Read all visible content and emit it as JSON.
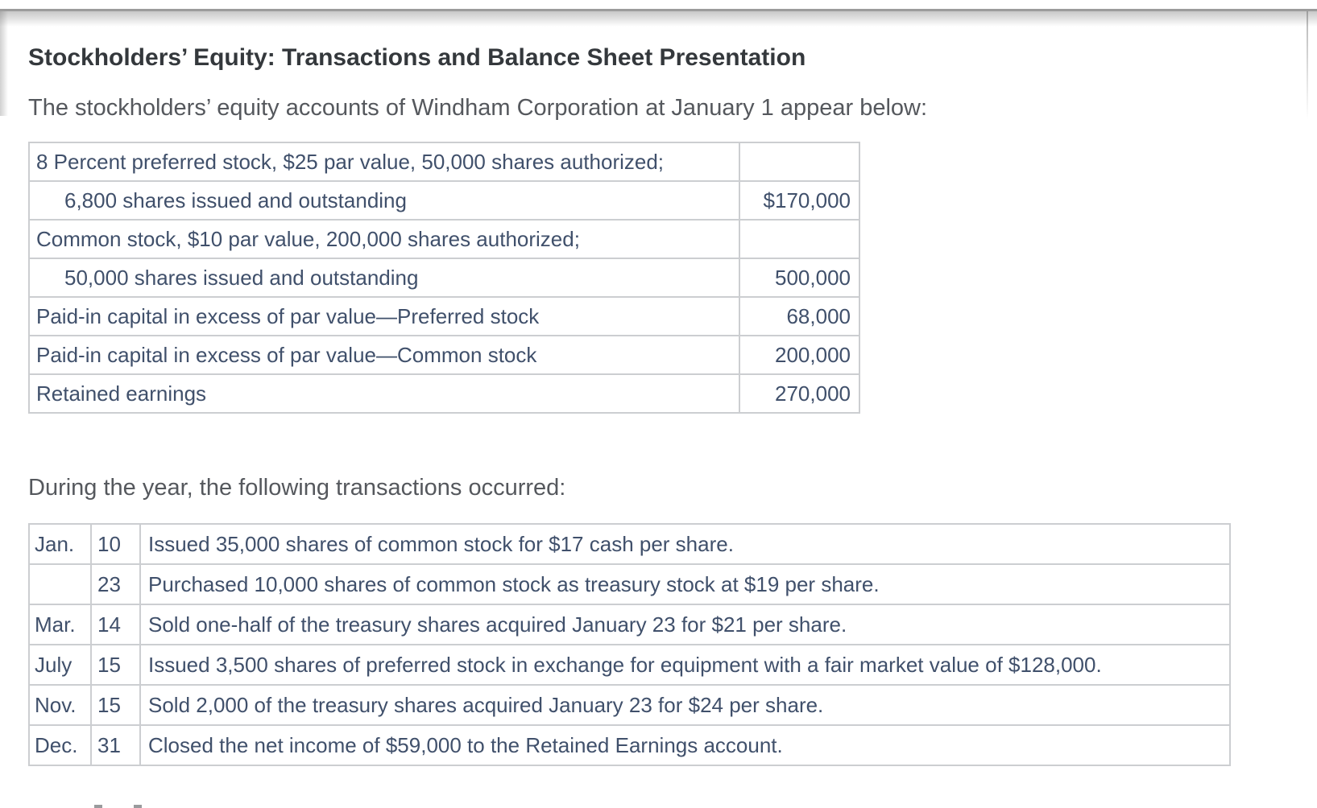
{
  "page": {
    "heading": "Stockholders’ Equity: Transactions and Balance Sheet Presentation",
    "intro": "The stockholders’ equity accounts of Windham Corporation at January 1 appear below:",
    "transactions_intro": "During the year, the following transactions occurred:"
  },
  "equity_table": {
    "rows": [
      {
        "label": "8 Percent preferred stock, $25 par value, 50,000 shares authorized;",
        "amount": ""
      },
      {
        "label": "6,800 shares issued and outstanding",
        "amount": "$170,000"
      },
      {
        "label": "Common stock, $10 par value, 200,000 shares authorized;",
        "amount": ""
      },
      {
        "label": "50,000 shares issued and outstanding",
        "amount": "500,000"
      },
      {
        "label": "Paid-in capital in excess of par value—Preferred stock",
        "amount": "68,000"
      },
      {
        "label": "Paid-in capital in excess of par value—Common stock",
        "amount": "200,000"
      },
      {
        "label": "Retained earnings",
        "amount": "270,000"
      }
    ]
  },
  "transactions_table": {
    "rows": [
      {
        "month": "Jan.",
        "day": "10",
        "description": "Issued 35,000 shares of common stock for $17 cash per share."
      },
      {
        "month": "",
        "day": "23",
        "description": "Purchased 10,000 shares of common stock as treasury stock at $19 per share."
      },
      {
        "month": "Mar.",
        "day": "14",
        "description": "Sold one-half of the treasury shares acquired January 23 for $21 per share."
      },
      {
        "month": "July",
        "day": "15",
        "description": "Issued 3,500 shares of preferred stock in exchange for equipment with a fair market value of $128,000."
      },
      {
        "month": "Nov.",
        "day": "15",
        "description": "Sold 2,000 of the treasury shares acquired January 23 for $24 per share."
      },
      {
        "month": "Dec.",
        "day": "31",
        "description": "Closed the net income of $59,000 to the Retained Earnings account."
      }
    ]
  },
  "colors": {
    "heading_text": "#34383c",
    "body_text": "#55585d",
    "table_text": "#40506b",
    "table_border": "#ccced1",
    "top_divider": "#9c9c9c"
  }
}
